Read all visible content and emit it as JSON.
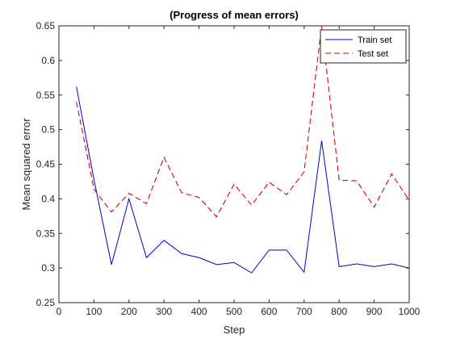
{
  "chart_data": {
    "type": "line",
    "title": "(Progress of mean errors)",
    "xlabel": "Step",
    "ylabel": "Mean squared error",
    "xlim": [
      0,
      1000
    ],
    "ylim": [
      0.25,
      0.65
    ],
    "xticks": [
      0,
      100,
      200,
      300,
      400,
      500,
      600,
      700,
      800,
      900,
      1000
    ],
    "yticks": [
      0.25,
      0.3,
      0.35,
      0.4,
      0.45,
      0.5,
      0.55,
      0.6,
      0.65
    ],
    "xtick_labels": [
      "0",
      "100",
      "200",
      "300",
      "400",
      "500",
      "600",
      "700",
      "800",
      "900",
      "1000"
    ],
    "ytick_labels": [
      "0.25",
      "0.3",
      "0.35",
      "0.4",
      "0.45",
      "0.5",
      "0.55",
      "0.6",
      "0.65"
    ],
    "grid": false,
    "legend_position": "top-right",
    "x": [
      50,
      100,
      150,
      200,
      250,
      300,
      350,
      400,
      450,
      500,
      550,
      600,
      650,
      700,
      750,
      800,
      850,
      900,
      950,
      1000
    ],
    "series": [
      {
        "name": "Train set",
        "color": "#0000cc",
        "style": "solid",
        "values": [
          0.562,
          0.428,
          0.305,
          0.4,
          0.315,
          0.34,
          0.321,
          0.315,
          0.305,
          0.308,
          0.293,
          0.326,
          0.326,
          0.294,
          0.484,
          0.302,
          0.306,
          0.302,
          0.306,
          0.3
        ]
      },
      {
        "name": "Test set",
        "color": "#dd0000",
        "style": "dashed",
        "values": [
          0.54,
          0.414,
          0.381,
          0.408,
          0.393,
          0.46,
          0.409,
          0.402,
          0.374,
          0.421,
          0.391,
          0.424,
          0.406,
          0.439,
          0.65,
          0.427,
          0.426,
          0.388,
          0.436,
          0.398
        ]
      }
    ]
  }
}
